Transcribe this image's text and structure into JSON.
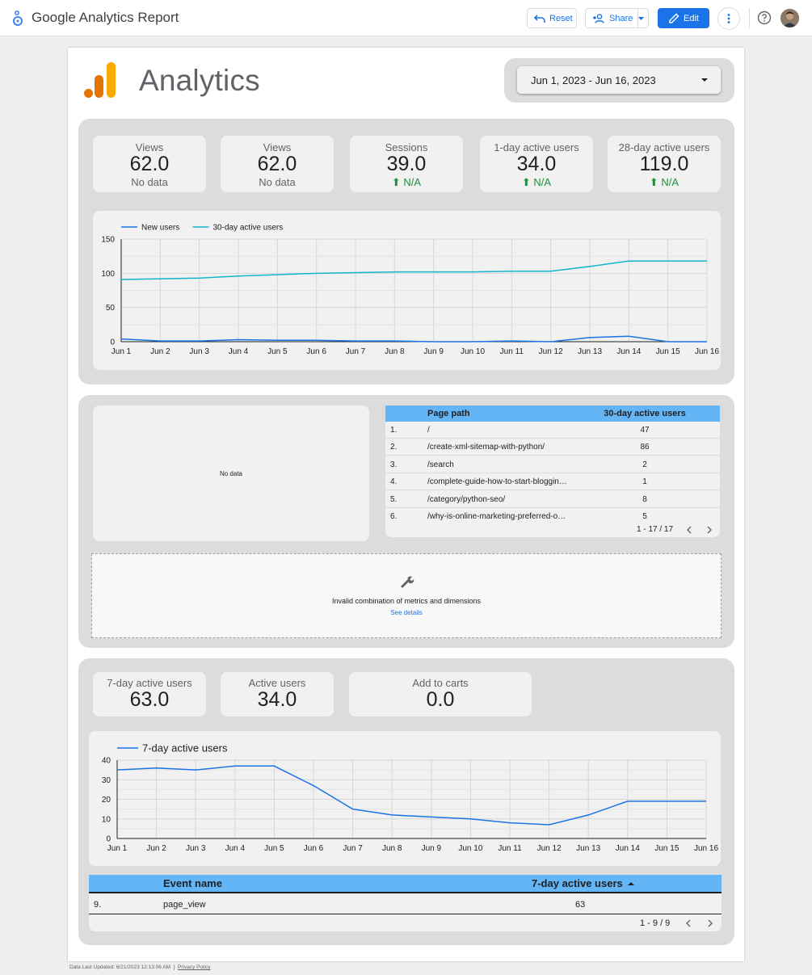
{
  "app": {
    "title": "Google Analytics Report"
  },
  "toolbar": {
    "reset": "Reset",
    "share": "Share",
    "edit": "Edit"
  },
  "report": {
    "logo_text": "Analytics",
    "date_range": "Jun 1, 2023 - Jun 16, 2023"
  },
  "scorecards_top": [
    {
      "label": "Views",
      "value": "62.0",
      "sub": "No data"
    },
    {
      "label": "Views",
      "value": "62.0",
      "sub": "No data"
    },
    {
      "label": "Sessions",
      "value": "39.0",
      "sub": "N/A"
    },
    {
      "label": "1-day active users",
      "value": "34.0",
      "sub": "N/A"
    },
    {
      "label": "28-day active users",
      "value": "119.0",
      "sub": "N/A"
    }
  ],
  "chart_data": [
    {
      "type": "line",
      "x": [
        "Jun 1",
        "Jun 2",
        "Jun 3",
        "Jun 4",
        "Jun 5",
        "Jun 6",
        "Jun 7",
        "Jun 8",
        "Jun 9",
        "Jun 10",
        "Jun 11",
        "Jun 12",
        "Jun 13",
        "Jun 14",
        "Jun 15",
        "Jun 16"
      ],
      "yticks": [
        "0",
        "50",
        "100",
        "150"
      ],
      "ylim": [
        0,
        150
      ],
      "grid": true,
      "legend_position": "top-left",
      "series": [
        {
          "name": "New users",
          "color": "#1a73e8",
          "values": [
            4,
            1,
            1,
            3,
            2,
            2,
            1,
            1,
            0,
            0,
            1,
            0,
            6,
            8,
            0,
            0
          ]
        },
        {
          "name": "30-day active users",
          "color": "#12b5cb",
          "values": [
            91,
            92,
            93,
            96,
            98,
            100,
            101,
            102,
            102,
            102,
            103,
            103,
            110,
            118,
            118,
            118
          ]
        }
      ]
    },
    {
      "type": "line",
      "x": [
        "Jun 1",
        "Jun 2",
        "Jun 3",
        "Jun 4",
        "Jun 5",
        "Jun 6",
        "Jun 7",
        "Jun 8",
        "Jun 9",
        "Jun 10",
        "Jun 11",
        "Jun 12",
        "Jun 13",
        "Jun 14",
        "Jun 15",
        "Jun 16"
      ],
      "yticks": [
        "0",
        "10",
        "20",
        "30",
        "40"
      ],
      "ylim": [
        0,
        40
      ],
      "grid": true,
      "legend_position": "top-left",
      "series": [
        {
          "name": "7-day active users",
          "color": "#1a73e8",
          "values": [
            35,
            36,
            35,
            37,
            37,
            27,
            15,
            12,
            11,
            10,
            8,
            7,
            12,
            19,
            19,
            19
          ]
        }
      ]
    }
  ],
  "nodata": {
    "text": "No data"
  },
  "pages_table": {
    "headers": [
      "Page path",
      "30-day active users"
    ],
    "rows": [
      {
        "idx": "1.",
        "path": "/",
        "value": "47"
      },
      {
        "idx": "2.",
        "path": "/create-xml-sitemap-with-python/",
        "value": "86"
      },
      {
        "idx": "3.",
        "path": "/search",
        "value": "2"
      },
      {
        "idx": "4.",
        "path": "/complete-guide-how-to-start-blogging-and-make-money/",
        "value": "1"
      },
      {
        "idx": "5.",
        "path": "/category/python-seo/",
        "value": "8"
      },
      {
        "idx": "6.",
        "path": "/why-is-online-marketing-preferred-over-traditional-marketing/",
        "value": "5"
      }
    ],
    "pagination": "1 - 17 / 17"
  },
  "error": {
    "message": "Invalid combination of metrics and dimensions",
    "link": "See details"
  },
  "scorecards_bottom": [
    {
      "label": "7-day active users",
      "value": "63.0"
    },
    {
      "label": "Active users",
      "value": "34.0"
    },
    {
      "label": "Add to carts",
      "value": "0.0"
    }
  ],
  "events_table": {
    "headers": [
      "Event name",
      "7-day active users"
    ],
    "sort": "ascending",
    "rows": [
      {
        "idx": "9.",
        "name": "page_view",
        "value": "63"
      }
    ],
    "pagination": "1 - 9 / 9"
  },
  "footer": {
    "updated": "Data Last Updated: 6/21/2023 12:13:06 AM",
    "privacy": "Privacy Policy"
  }
}
